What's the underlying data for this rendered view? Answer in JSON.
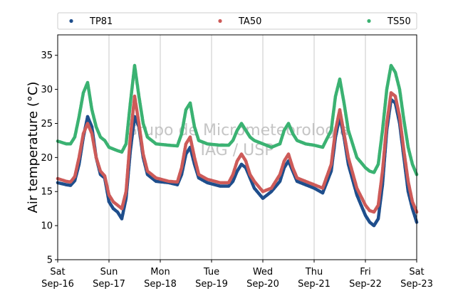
{
  "chart_data": {
    "type": "scatter",
    "ylabel": "Air temperature (°C)",
    "ylim": [
      5,
      38
    ],
    "yticks": [
      5,
      10,
      15,
      20,
      25,
      30,
      35
    ],
    "xlim": [
      "2017-09-16",
      "2017-09-23"
    ],
    "xticks": [
      {
        "x": "2017-09-16",
        "label1": "Sat",
        "label2": "Sep-16"
      },
      {
        "x": "2017-09-17",
        "label1": "Sun",
        "label2": "Sep-17"
      },
      {
        "x": "2017-09-18",
        "label1": "Mon",
        "label2": "Sep-18"
      },
      {
        "x": "2017-09-19",
        "label1": "Tue",
        "label2": "Sep-19"
      },
      {
        "x": "2017-09-20",
        "label1": "Wed",
        "label2": "Sep-20"
      },
      {
        "x": "2017-09-21",
        "label1": "Thu",
        "label2": "Sep-21"
      },
      {
        "x": "2017-09-22",
        "label1": "Fri",
        "label2": "Sep-22"
      },
      {
        "x": "2017-09-23",
        "label1": "Sat",
        "label2": "Sep-23"
      }
    ],
    "grid": "vertical",
    "legend_position": "top",
    "watermark": [
      "Grupo de Micrometeorologia",
      "IAG / USP"
    ],
    "series": [
      {
        "name": "TP81",
        "color": "#1f4e8c",
        "points": [
          [
            "2017-09-16 00:00",
            16.3
          ],
          [
            "2017-09-16 04:00",
            16.0
          ],
          [
            "2017-09-16 06:00",
            15.9
          ],
          [
            "2017-09-16 08:00",
            16.6
          ],
          [
            "2017-09-16 10:00",
            19.0
          ],
          [
            "2017-09-16 12:00",
            23.0
          ],
          [
            "2017-09-16 14:00",
            26.0
          ],
          [
            "2017-09-16 16:00",
            24.5
          ],
          [
            "2017-09-16 18:00",
            20.0
          ],
          [
            "2017-09-16 20:00",
            17.5
          ],
          [
            "2017-09-16 22:00",
            17.0
          ],
          [
            "2017-09-17 00:00",
            13.5
          ],
          [
            "2017-09-17 02:00",
            12.5
          ],
          [
            "2017-09-17 04:00",
            12.0
          ],
          [
            "2017-09-17 06:00",
            11.0
          ],
          [
            "2017-09-17 08:00",
            14.0
          ],
          [
            "2017-09-17 10:00",
            21.0
          ],
          [
            "2017-09-17 12:00",
            26.0
          ],
          [
            "2017-09-17 14:00",
            24.5
          ],
          [
            "2017-09-17 16:00",
            20.0
          ],
          [
            "2017-09-17 18:00",
            17.5
          ],
          [
            "2017-09-17 22:00",
            16.5
          ],
          [
            "2017-09-18 04:00",
            16.3
          ],
          [
            "2017-09-18 08:00",
            16.0
          ],
          [
            "2017-09-18 10:00",
            17.5
          ],
          [
            "2017-09-18 12:00",
            20.5
          ],
          [
            "2017-09-18 14:00",
            21.5
          ],
          [
            "2017-09-18 16:00",
            19.0
          ],
          [
            "2017-09-18 18:00",
            17.0
          ],
          [
            "2017-09-18 22:00",
            16.3
          ],
          [
            "2017-09-19 04:00",
            15.8
          ],
          [
            "2017-09-19 08:00",
            15.8
          ],
          [
            "2017-09-19 10:00",
            16.5
          ],
          [
            "2017-09-19 12:00",
            18.0
          ],
          [
            "2017-09-19 14:00",
            19.0
          ],
          [
            "2017-09-19 16:00",
            18.5
          ],
          [
            "2017-09-19 18:00",
            17.0
          ],
          [
            "2017-09-19 20:00",
            15.5
          ],
          [
            "2017-09-20 00:00",
            14.0
          ],
          [
            "2017-09-20 04:00",
            15.0
          ],
          [
            "2017-09-20 08:00",
            16.5
          ],
          [
            "2017-09-20 10:00",
            18.5
          ],
          [
            "2017-09-20 12:00",
            19.5
          ],
          [
            "2017-09-20 14:00",
            18.0
          ],
          [
            "2017-09-20 16:00",
            16.5
          ],
          [
            "2017-09-20 20:00",
            16.0
          ],
          [
            "2017-09-21 00:00",
            15.5
          ],
          [
            "2017-09-21 04:00",
            14.8
          ],
          [
            "2017-09-21 08:00",
            18.0
          ],
          [
            "2017-09-21 10:00",
            23.0
          ],
          [
            "2017-09-21 12:00",
            26.0
          ],
          [
            "2017-09-21 14:00",
            23.0
          ],
          [
            "2017-09-21 16:00",
            19.0
          ],
          [
            "2017-09-21 20:00",
            14.5
          ],
          [
            "2017-09-22 00:00",
            11.5
          ],
          [
            "2017-09-22 02:00",
            10.5
          ],
          [
            "2017-09-22 04:00",
            10.0
          ],
          [
            "2017-09-22 06:00",
            11.0
          ],
          [
            "2017-09-22 08:00",
            16.0
          ],
          [
            "2017-09-22 10:00",
            24.0
          ],
          [
            "2017-09-22 12:00",
            28.5
          ],
          [
            "2017-09-22 14:00",
            28.0
          ],
          [
            "2017-09-22 16:00",
            25.0
          ],
          [
            "2017-09-22 18:00",
            20.0
          ],
          [
            "2017-09-22 20:00",
            15.0
          ],
          [
            "2017-09-22 22:00",
            12.5
          ],
          [
            "2017-09-23 00:00",
            10.5
          ]
        ]
      },
      {
        "name": "TA50",
        "color": "#cd5b59",
        "points": [
          [
            "2017-09-16 00:00",
            16.9
          ],
          [
            "2017-09-16 04:00",
            16.5
          ],
          [
            "2017-09-16 06:00",
            16.4
          ],
          [
            "2017-09-16 08:00",
            17.2
          ],
          [
            "2017-09-16 10:00",
            20.0
          ],
          [
            "2017-09-16 12:00",
            23.5
          ],
          [
            "2017-09-16 14:00",
            25.0
          ],
          [
            "2017-09-16 16:00",
            23.5
          ],
          [
            "2017-09-16 18:00",
            20.0
          ],
          [
            "2017-09-16 20:00",
            18.0
          ],
          [
            "2017-09-16 22:00",
            17.3
          ],
          [
            "2017-09-17 00:00",
            14.5
          ],
          [
            "2017-09-17 02:00",
            13.5
          ],
          [
            "2017-09-17 04:00",
            13.0
          ],
          [
            "2017-09-17 06:00",
            12.5
          ],
          [
            "2017-09-17 08:00",
            15.0
          ],
          [
            "2017-09-17 10:00",
            23.0
          ],
          [
            "2017-09-17 12:00",
            29.0
          ],
          [
            "2017-09-17 14:00",
            25.0
          ],
          [
            "2017-09-17 16:00",
            20.5
          ],
          [
            "2017-09-17 18:00",
            18.0
          ],
          [
            "2017-09-17 22:00",
            17.0
          ],
          [
            "2017-09-18 04:00",
            16.5
          ],
          [
            "2017-09-18 08:00",
            16.4
          ],
          [
            "2017-09-18 10:00",
            18.5
          ],
          [
            "2017-09-18 12:00",
            22.0
          ],
          [
            "2017-09-18 14:00",
            23.0
          ],
          [
            "2017-09-18 16:00",
            20.0
          ],
          [
            "2017-09-18 18:00",
            17.5
          ],
          [
            "2017-09-18 22:00",
            16.8
          ],
          [
            "2017-09-19 04:00",
            16.3
          ],
          [
            "2017-09-19 08:00",
            16.3
          ],
          [
            "2017-09-19 10:00",
            17.5
          ],
          [
            "2017-09-19 12:00",
            19.5
          ],
          [
            "2017-09-19 14:00",
            20.5
          ],
          [
            "2017-09-19 16:00",
            19.5
          ],
          [
            "2017-09-19 18:00",
            17.5
          ],
          [
            "2017-09-19 20:00",
            16.5
          ],
          [
            "2017-09-20 00:00",
            15.0
          ],
          [
            "2017-09-20 04:00",
            15.5
          ],
          [
            "2017-09-20 08:00",
            17.5
          ],
          [
            "2017-09-20 10:00",
            19.5
          ],
          [
            "2017-09-20 12:00",
            20.5
          ],
          [
            "2017-09-20 14:00",
            18.5
          ],
          [
            "2017-09-20 16:00",
            17.0
          ],
          [
            "2017-09-20 20:00",
            16.5
          ],
          [
            "2017-09-21 00:00",
            16.0
          ],
          [
            "2017-09-21 04:00",
            15.5
          ],
          [
            "2017-09-21 08:00",
            19.0
          ],
          [
            "2017-09-21 10:00",
            24.0
          ],
          [
            "2017-09-21 12:00",
            27.0
          ],
          [
            "2017-09-21 14:00",
            23.5
          ],
          [
            "2017-09-21 16:00",
            20.0
          ],
          [
            "2017-09-21 20:00",
            15.5
          ],
          [
            "2017-09-22 00:00",
            13.0
          ],
          [
            "2017-09-22 02:00",
            12.2
          ],
          [
            "2017-09-22 04:00",
            12.0
          ],
          [
            "2017-09-22 06:00",
            13.0
          ],
          [
            "2017-09-22 08:00",
            18.0
          ],
          [
            "2017-09-22 10:00",
            25.0
          ],
          [
            "2017-09-22 12:00",
            29.5
          ],
          [
            "2017-09-22 14:00",
            29.0
          ],
          [
            "2017-09-22 16:00",
            26.0
          ],
          [
            "2017-09-22 18:00",
            21.0
          ],
          [
            "2017-09-22 20:00",
            16.5
          ],
          [
            "2017-09-22 22:00",
            13.5
          ],
          [
            "2017-09-23 00:00",
            12.0
          ]
        ]
      },
      {
        "name": "TS50",
        "color": "#3bb272",
        "points": [
          [
            "2017-09-16 00:00",
            22.4
          ],
          [
            "2017-09-16 04:00",
            22.0
          ],
          [
            "2017-09-16 06:00",
            22.0
          ],
          [
            "2017-09-16 08:00",
            23.0
          ],
          [
            "2017-09-16 10:00",
            26.0
          ],
          [
            "2017-09-16 12:00",
            29.5
          ],
          [
            "2017-09-16 14:00",
            31.0
          ],
          [
            "2017-09-16 16:00",
            27.0
          ],
          [
            "2017-09-16 18:00",
            24.5
          ],
          [
            "2017-09-16 20:00",
            23.0
          ],
          [
            "2017-09-16 22:00",
            22.5
          ],
          [
            "2017-09-17 00:00",
            21.5
          ],
          [
            "2017-09-17 04:00",
            21.0
          ],
          [
            "2017-09-17 06:00",
            20.8
          ],
          [
            "2017-09-17 08:00",
            22.0
          ],
          [
            "2017-09-17 10:00",
            28.0
          ],
          [
            "2017-09-17 12:00",
            33.5
          ],
          [
            "2017-09-17 14:00",
            29.0
          ],
          [
            "2017-09-17 16:00",
            25.0
          ],
          [
            "2017-09-17 18:00",
            23.0
          ],
          [
            "2017-09-17 22:00",
            22.0
          ],
          [
            "2017-09-18 04:00",
            21.8
          ],
          [
            "2017-09-18 08:00",
            21.7
          ],
          [
            "2017-09-18 10:00",
            23.5
          ],
          [
            "2017-09-18 12:00",
            27.0
          ],
          [
            "2017-09-18 14:00",
            28.0
          ],
          [
            "2017-09-18 16:00",
            24.5
          ],
          [
            "2017-09-18 18:00",
            22.5
          ],
          [
            "2017-09-18 22:00",
            22.0
          ],
          [
            "2017-09-19 04:00",
            21.8
          ],
          [
            "2017-09-19 08:00",
            21.8
          ],
          [
            "2017-09-19 10:00",
            22.5
          ],
          [
            "2017-09-19 12:00",
            24.0
          ],
          [
            "2017-09-19 14:00",
            25.0
          ],
          [
            "2017-09-19 16:00",
            24.0
          ],
          [
            "2017-09-19 18:00",
            23.0
          ],
          [
            "2017-09-19 20:00",
            22.5
          ],
          [
            "2017-09-20 00:00",
            22.0
          ],
          [
            "2017-09-20 04:00",
            21.5
          ],
          [
            "2017-09-20 08:00",
            22.0
          ],
          [
            "2017-09-20 10:00",
            24.0
          ],
          [
            "2017-09-20 12:00",
            25.0
          ],
          [
            "2017-09-20 14:00",
            23.5
          ],
          [
            "2017-09-20 16:00",
            22.5
          ],
          [
            "2017-09-20 20:00",
            22.0
          ],
          [
            "2017-09-21 00:00",
            21.8
          ],
          [
            "2017-09-21 04:00",
            21.5
          ],
          [
            "2017-09-21 08:00",
            24.0
          ],
          [
            "2017-09-21 10:00",
            29.0
          ],
          [
            "2017-09-21 12:00",
            31.5
          ],
          [
            "2017-09-21 14:00",
            28.0
          ],
          [
            "2017-09-21 16:00",
            24.0
          ],
          [
            "2017-09-21 20:00",
            20.0
          ],
          [
            "2017-09-22 00:00",
            18.5
          ],
          [
            "2017-09-22 02:00",
            18.0
          ],
          [
            "2017-09-22 04:00",
            17.8
          ],
          [
            "2017-09-22 06:00",
            19.0
          ],
          [
            "2017-09-22 08:00",
            24.0
          ],
          [
            "2017-09-22 10:00",
            30.0
          ],
          [
            "2017-09-22 12:00",
            33.5
          ],
          [
            "2017-09-22 14:00",
            32.5
          ],
          [
            "2017-09-22 16:00",
            30.0
          ],
          [
            "2017-09-22 18:00",
            25.5
          ],
          [
            "2017-09-22 20:00",
            21.5
          ],
          [
            "2017-09-22 22:00",
            19.0
          ],
          [
            "2017-09-23 00:00",
            17.5
          ]
        ]
      }
    ]
  }
}
